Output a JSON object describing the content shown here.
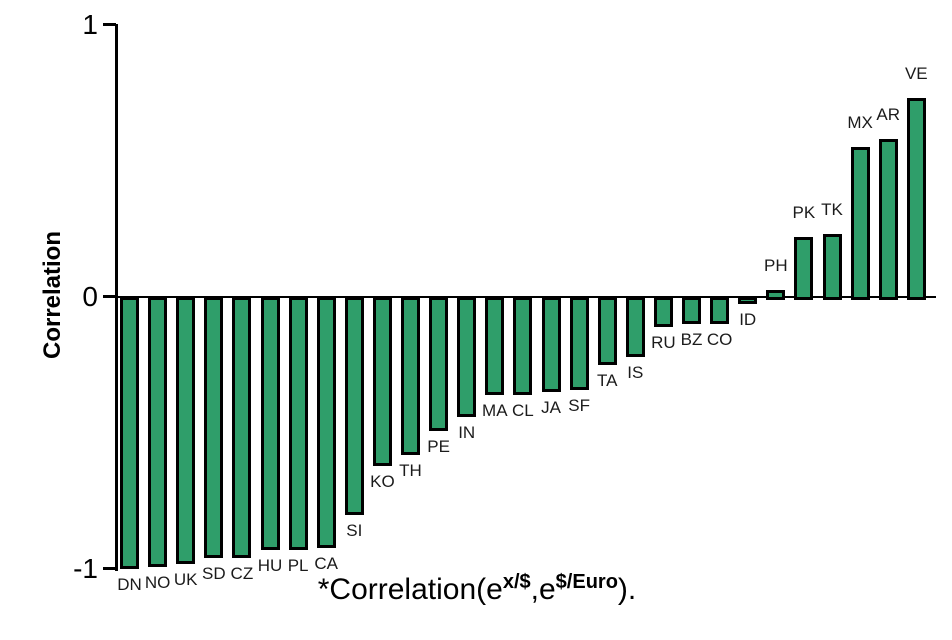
{
  "chart_data": {
    "type": "bar",
    "title": "",
    "ylabel": "Correlation",
    "xlabel_text": "*Correlation(e^x/$,e^$/Euro).",
    "xlabel_parts": {
      "prefix": "*Correlation(e",
      "sup1": "x/$",
      "mid": ",e",
      "sup2": "$/Euro",
      "suffix": ")."
    },
    "categories": [
      "DN",
      "NO",
      "UK",
      "SD",
      "CZ",
      "HU",
      "PL",
      "CA",
      "SI",
      "KO",
      "TH",
      "PE",
      "IN",
      "MA",
      "CL",
      "JA",
      "SF",
      "TA",
      "IS",
      "RU",
      "BZ",
      "CO",
      "ID",
      "PH",
      "PK",
      "TK",
      "MX",
      "AR",
      "VE"
    ],
    "values": [
      -0.99,
      -0.98,
      -0.97,
      -0.95,
      -0.95,
      -0.92,
      -0.92,
      -0.91,
      -0.79,
      -0.61,
      -0.57,
      -0.48,
      -0.43,
      -0.35,
      -0.35,
      -0.34,
      -0.33,
      -0.24,
      -0.21,
      -0.1,
      -0.09,
      -0.09,
      -0.015,
      0.025,
      0.22,
      0.23,
      0.55,
      0.58,
      0.73
    ],
    "ylim": [
      -1,
      1
    ],
    "yticks": [
      {
        "label": "1",
        "value": 1
      },
      {
        "label": "0",
        "value": 0
      },
      {
        "label": "-1",
        "value": -1
      }
    ],
    "bar_color": "#2F9E6A",
    "bar_border_color": "#000000",
    "grid": false,
    "legend": "none"
  }
}
